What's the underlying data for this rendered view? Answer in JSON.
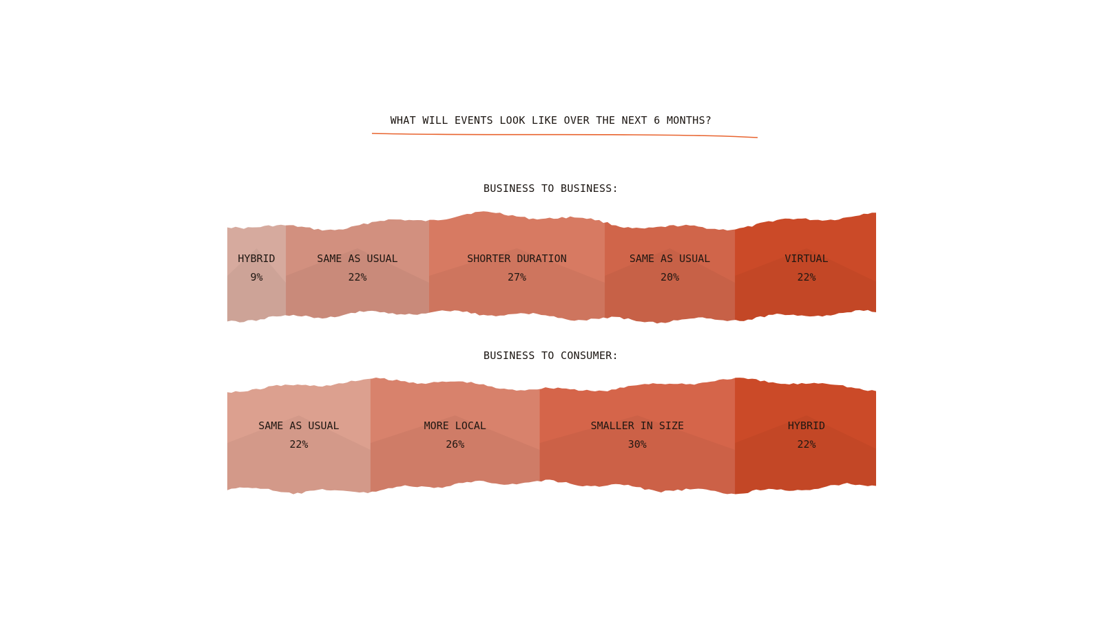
{
  "page": {
    "title": "WHAT WILL EVENTS LOOK LIKE OVER THE NEXT 6 MONTHS?",
    "accent_color": "#e8632e"
  },
  "chart_data": [
    {
      "type": "bar",
      "stacked": true,
      "orientation": "horizontal",
      "title": "BUSINESS TO BUSINESS:",
      "unit": "%",
      "categories": [
        "HYBRID",
        "SAME AS USUAL",
        "SHORTER DURATION",
        "SAME AS USUAL",
        "VIRTUAL"
      ],
      "values": [
        9,
        22,
        27,
        20,
        22
      ],
      "value_labels": [
        "9%",
        "22%",
        "27%",
        "20%",
        "22%"
      ],
      "colors": [
        "#d6aa9e",
        "#d2907f",
        "#d77a62",
        "#d0654a",
        "#cb4a28"
      ]
    },
    {
      "type": "bar",
      "stacked": true,
      "orientation": "horizontal",
      "title": "BUSINESS TO CONSUMER:",
      "unit": "%",
      "categories": [
        "SAME AS USUAL",
        "MORE LOCAL",
        "SMALLER IN SIZE",
        "HYBRID"
      ],
      "values": [
        22,
        26,
        30,
        22
      ],
      "value_labels": [
        "22%",
        "26%",
        "30%",
        "22%"
      ],
      "colors": [
        "#dca08f",
        "#d8826c",
        "#d5654a",
        "#cb4a28"
      ]
    }
  ]
}
